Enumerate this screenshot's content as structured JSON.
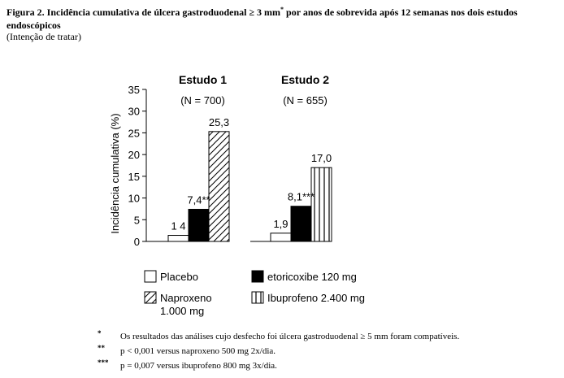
{
  "figure": {
    "title": "Figura 2. Incidência cumulativa de úlcera gastroduodenal ≥ 3 mm",
    "title_sup": "*",
    "title_rest": " por anos de sobrevida após 12 semanas nos dois estudos endoscópicos",
    "subtitle": "(Intenção de tratar)"
  },
  "chart_data": {
    "type": "bar",
    "ylabel": "Incidência cumulativa (%)",
    "ylim": [
      0,
      35
    ],
    "yticks": [
      0,
      5,
      10,
      15,
      20,
      25,
      30,
      35
    ],
    "groups": [
      {
        "title": "Estudo 1",
        "n_label": "(N = 700)",
        "bars": [
          {
            "series": "Placebo",
            "value": 1.4,
            "label": "1 4"
          },
          {
            "series": "etoricoxibe 120 mg",
            "value": 7.4,
            "label": "7,4**"
          },
          {
            "series": "Naproxeno 1.000 mg",
            "value": 25.3,
            "label": "25,3"
          }
        ]
      },
      {
        "title": "Estudo 2",
        "n_label": "(N = 655)",
        "bars": [
          {
            "series": "Placebo",
            "value": 1.9,
            "label": "1,9"
          },
          {
            "series": "etoricoxibe 120 mg",
            "value": 8.1,
            "label": "8,1***"
          },
          {
            "series": "Ibuprofeno 2.400 mg",
            "value": 17.0,
            "label": "17,0"
          }
        ]
      }
    ],
    "legend": [
      {
        "name": "Placebo",
        "pattern": "empty"
      },
      {
        "name": "etoricoxibe 120 mg",
        "pattern": "solid"
      },
      {
        "name": "Naproxeno",
        "name2": "1.000 mg",
        "pattern": "diagonal"
      },
      {
        "name": "Ibuprofeno 2.400 mg",
        "pattern": "vertical"
      }
    ]
  },
  "footnotes": [
    {
      "symbol": "*",
      "text": "Os resultados das análises cujo desfecho foi úlcera gastroduodenal ≥ 5 mm foram compatíveis."
    },
    {
      "symbol": "**",
      "text": "p < 0,001 versus naproxeno 500 mg 2x/dia."
    },
    {
      "symbol": "***",
      "text": "p = 0,007 versus ibuprofeno 800 mg 3x/dia."
    }
  ]
}
